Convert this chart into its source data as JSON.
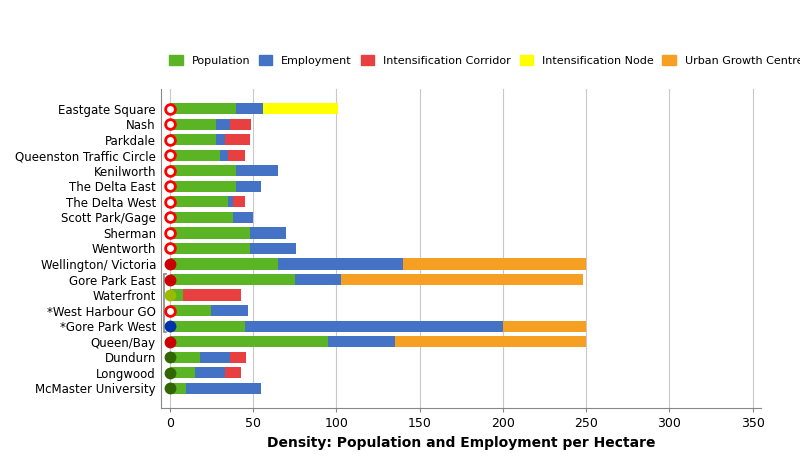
{
  "stations": [
    "Eastgate Square",
    "Nash",
    "Parkdale",
    "Queenston Traffic Circle",
    "Kenilworth",
    "The Delta East",
    "The Delta West",
    "Scott Park/Gage",
    "Sherman",
    "Wentworth",
    "Wellington/ Victoria",
    "Gore Park East",
    "Waterfront",
    "*West Harbour GO",
    "*Gore Park West",
    "Queen/Bay",
    "Dundurn",
    "Longwood",
    "McMaster University"
  ],
  "population": [
    40,
    28,
    28,
    30,
    40,
    40,
    35,
    38,
    48,
    48,
    65,
    75,
    8,
    25,
    45,
    95,
    18,
    15,
    10
  ],
  "employment": [
    16,
    8,
    5,
    5,
    25,
    15,
    3,
    12,
    22,
    28,
    75,
    28,
    0,
    22,
    155,
    40,
    18,
    18,
    45
  ],
  "intensification": [
    0,
    13,
    15,
    10,
    0,
    0,
    7,
    0,
    0,
    0,
    0,
    0,
    35,
    0,
    0,
    0,
    10,
    10,
    0
  ],
  "intens_node": [
    45,
    0,
    0,
    0,
    0,
    0,
    0,
    0,
    0,
    0,
    0,
    0,
    0,
    0,
    0,
    0,
    0,
    0,
    0
  ],
  "urban_growth": [
    0,
    0,
    0,
    0,
    0,
    0,
    0,
    0,
    0,
    0,
    110,
    145,
    0,
    0,
    50,
    115,
    0,
    0,
    0
  ],
  "marker_colors": [
    "#ff0000",
    "#ff0000",
    "#ff0000",
    "#ff0000",
    "#ff0000",
    "#ff0000",
    "#ff0000",
    "#ff0000",
    "#ff0000",
    "#ff0000",
    "#cc0000",
    "#cc0000",
    "#99bb00",
    "#ff0000",
    "#0033aa",
    "#cc0000",
    "#336600",
    "#336600",
    "#336600"
  ],
  "marker_filled": [
    false,
    false,
    false,
    false,
    false,
    false,
    false,
    false,
    false,
    false,
    true,
    true,
    true,
    false,
    true,
    true,
    true,
    true,
    true
  ],
  "colors": {
    "population": "#5ab424",
    "employment": "#4472c4",
    "intensification": "#e84040",
    "intens_node": "#ffff00",
    "urban_growth": "#f5a023"
  },
  "xlabel": "Density: Population and Employment per Hectare",
  "xlim": [
    -5,
    355
  ],
  "xticks": [
    0,
    50,
    100,
    150,
    200,
    250,
    300,
    350
  ],
  "grid_color": "#c8c8c8",
  "bracket_rows": [
    11,
    12,
    13,
    14
  ],
  "figsize": [
    8.0,
    4.65
  ],
  "dpi": 100
}
